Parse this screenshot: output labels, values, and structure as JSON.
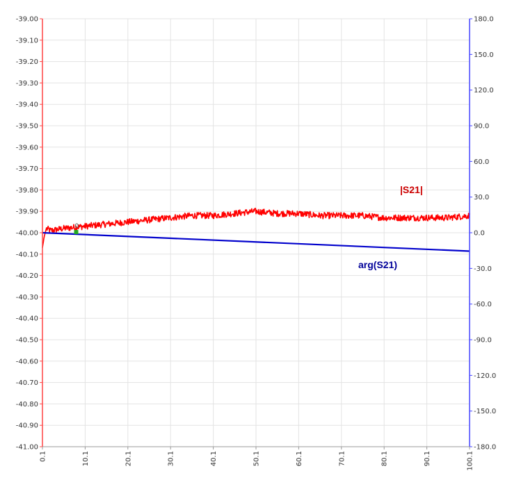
{
  "chart_data": {
    "type": "line",
    "x": {
      "min": 0.1,
      "max": 100.1,
      "ticks": [
        "0.1",
        "10.1",
        "20.1",
        "30.1",
        "40.1",
        "50.1",
        "60.1",
        "70.1",
        "80.1",
        "90.1",
        "100.1"
      ]
    },
    "y_left": {
      "min": -41.0,
      "max": -39.0,
      "ticks": [
        "-39.00",
        "-39.10",
        "-39.20",
        "-39.30",
        "-39.40",
        "-39.50",
        "-39.60",
        "-39.70",
        "-39.80",
        "-39.90",
        "-40.00",
        "-40.10",
        "-40.20",
        "-40.30",
        "-40.40",
        "-40.50",
        "-40.60",
        "-40.70",
        "-40.80",
        "-40.90",
        "-41.00"
      ]
    },
    "y_right": {
      "min": -180,
      "max": 180,
      "ticks": [
        "180.0",
        "150.0",
        "120.0",
        "90.0",
        "60.0",
        "30.0",
        "0.0",
        "-30.0",
        "-60.0",
        "-90.0",
        "-120.0",
        "-150.0",
        "-180.0"
      ]
    },
    "grid": true,
    "series": [
      {
        "name": "|S21|",
        "axis": "left",
        "color": "#ff0000",
        "x": [
          0.1,
          0.5,
          1,
          2,
          5,
          10,
          15,
          20,
          25,
          30,
          35,
          40,
          45,
          50,
          55,
          60,
          65,
          70,
          75,
          80,
          85,
          90,
          95,
          100.1
        ],
        "values": [
          -40.07,
          -40.02,
          -39.98,
          -39.99,
          -39.98,
          -39.97,
          -39.96,
          -39.95,
          -39.94,
          -39.93,
          -39.92,
          -39.92,
          -39.91,
          -39.9,
          -39.91,
          -39.91,
          -39.92,
          -39.92,
          -39.92,
          -39.93,
          -39.93,
          -39.93,
          -39.93,
          -39.92
        ],
        "noise_amplitude": 0.015
      },
      {
        "name": "arg(S21)",
        "axis": "right",
        "color": "#0000cc",
        "x": [
          0.1,
          100.1
        ],
        "values": [
          0.0,
          -15.5
        ]
      }
    ],
    "marker": {
      "label": "0",
      "x": 8.0,
      "color": "#22aa22"
    },
    "axis_colors": {
      "left": "#ff4444",
      "right": "#4444ff"
    }
  }
}
